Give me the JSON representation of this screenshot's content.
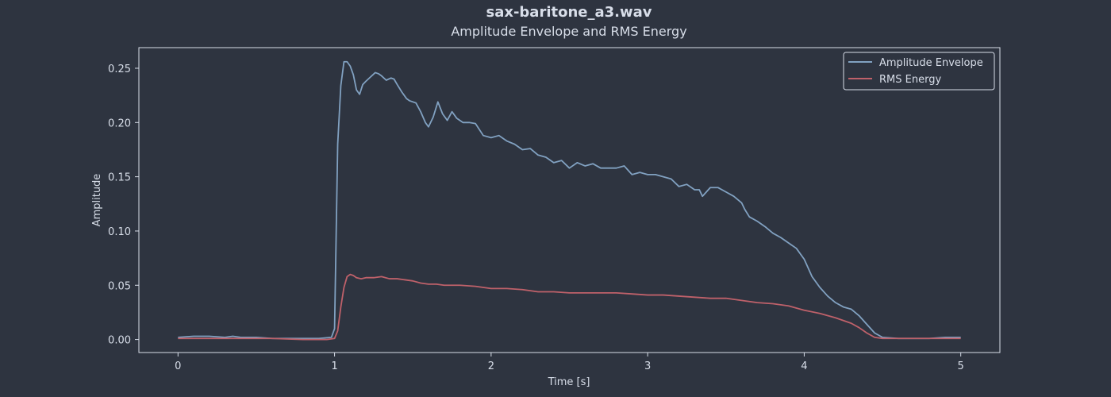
{
  "colors": {
    "background": "#2e3440",
    "axes": "#d8dee9",
    "text": "#d8dee9"
  },
  "chart_data": {
    "type": "line",
    "title": "sax-baritone_a3.wav",
    "subtitle": "Amplitude Envelope and RMS Energy",
    "xlabel": "Time [s]",
    "ylabel": "Amplitude",
    "xlim": [
      -0.25,
      5.25
    ],
    "ylim": [
      -0.012,
      0.269
    ],
    "xticks": [
      0,
      1,
      2,
      3,
      4,
      5
    ],
    "xtick_labels": [
      "0",
      "1",
      "2",
      "3",
      "4",
      "5"
    ],
    "yticks": [
      0.0,
      0.05,
      0.1,
      0.15,
      0.2,
      0.25
    ],
    "ytick_labels": [
      "0.00",
      "0.05",
      "0.10",
      "0.15",
      "0.20",
      "0.25"
    ],
    "grid": false,
    "legend_position": "top-right",
    "series": [
      {
        "name": "Amplitude Envelope",
        "color": "#81a1c1",
        "x": [
          0,
          0.1,
          0.2,
          0.3,
          0.35,
          0.4,
          0.5,
          0.6,
          0.7,
          0.8,
          0.9,
          0.98,
          1.0,
          1.02,
          1.04,
          1.06,
          1.08,
          1.1,
          1.12,
          1.14,
          1.16,
          1.18,
          1.2,
          1.23,
          1.26,
          1.28,
          1.3,
          1.33,
          1.36,
          1.38,
          1.4,
          1.43,
          1.46,
          1.48,
          1.52,
          1.55,
          1.58,
          1.6,
          1.63,
          1.66,
          1.69,
          1.72,
          1.75,
          1.78,
          1.82,
          1.86,
          1.9,
          1.95,
          2.0,
          2.05,
          2.1,
          2.15,
          2.2,
          2.25,
          2.3,
          2.35,
          2.4,
          2.45,
          2.5,
          2.55,
          2.6,
          2.65,
          2.7,
          2.75,
          2.8,
          2.85,
          2.9,
          2.95,
          3.0,
          3.05,
          3.1,
          3.15,
          3.2,
          3.25,
          3.3,
          3.33,
          3.35,
          3.4,
          3.45,
          3.5,
          3.55,
          3.6,
          3.62,
          3.65,
          3.7,
          3.75,
          3.8,
          3.85,
          3.9,
          3.95,
          4.0,
          4.05,
          4.1,
          4.15,
          4.2,
          4.25,
          4.3,
          4.35,
          4.4,
          4.45,
          4.5,
          4.6,
          4.7,
          4.8,
          4.9,
          5.0
        ],
        "values": [
          0.002,
          0.003,
          0.003,
          0.002,
          0.003,
          0.002,
          0.002,
          0.001,
          0.001,
          0.001,
          0.001,
          0.002,
          0.01,
          0.18,
          0.234,
          0.256,
          0.256,
          0.252,
          0.244,
          0.23,
          0.226,
          0.235,
          0.238,
          0.242,
          0.246,
          0.245,
          0.243,
          0.239,
          0.241,
          0.24,
          0.235,
          0.228,
          0.222,
          0.22,
          0.218,
          0.21,
          0.2,
          0.196,
          0.205,
          0.219,
          0.208,
          0.202,
          0.21,
          0.204,
          0.2,
          0.2,
          0.199,
          0.188,
          0.186,
          0.188,
          0.183,
          0.18,
          0.175,
          0.176,
          0.17,
          0.168,
          0.163,
          0.165,
          0.158,
          0.163,
          0.16,
          0.162,
          0.158,
          0.158,
          0.158,
          0.16,
          0.152,
          0.154,
          0.152,
          0.152,
          0.15,
          0.148,
          0.141,
          0.143,
          0.138,
          0.138,
          0.132,
          0.14,
          0.14,
          0.136,
          0.132,
          0.126,
          0.12,
          0.113,
          0.109,
          0.104,
          0.098,
          0.094,
          0.089,
          0.084,
          0.074,
          0.058,
          0.048,
          0.04,
          0.034,
          0.03,
          0.028,
          0.022,
          0.014,
          0.006,
          0.002,
          0.001,
          0.001,
          0.001,
          0.002,
          0.002
        ]
      },
      {
        "name": "RMS Energy",
        "color": "#bf616a",
        "x": [
          0,
          0.2,
          0.4,
          0.6,
          0.8,
          0.95,
          1.0,
          1.02,
          1.04,
          1.06,
          1.08,
          1.1,
          1.12,
          1.14,
          1.17,
          1.2,
          1.25,
          1.3,
          1.35,
          1.4,
          1.45,
          1.5,
          1.55,
          1.6,
          1.65,
          1.7,
          1.8,
          1.9,
          2.0,
          2.1,
          2.2,
          2.3,
          2.4,
          2.5,
          2.6,
          2.7,
          2.8,
          2.9,
          3.0,
          3.1,
          3.2,
          3.3,
          3.4,
          3.5,
          3.6,
          3.7,
          3.8,
          3.9,
          4.0,
          4.1,
          4.2,
          4.3,
          4.35,
          4.4,
          4.45,
          4.5,
          4.6,
          4.8,
          5.0
        ],
        "values": [
          0.001,
          0.001,
          0.001,
          0.001,
          0.0,
          0.0,
          0.001,
          0.008,
          0.03,
          0.048,
          0.058,
          0.06,
          0.059,
          0.057,
          0.056,
          0.057,
          0.057,
          0.058,
          0.056,
          0.056,
          0.055,
          0.054,
          0.052,
          0.051,
          0.051,
          0.05,
          0.05,
          0.049,
          0.047,
          0.047,
          0.046,
          0.044,
          0.044,
          0.043,
          0.043,
          0.043,
          0.043,
          0.042,
          0.041,
          0.041,
          0.04,
          0.039,
          0.038,
          0.038,
          0.036,
          0.034,
          0.033,
          0.031,
          0.027,
          0.024,
          0.02,
          0.015,
          0.011,
          0.006,
          0.002,
          0.001,
          0.001,
          0.001,
          0.001
        ]
      }
    ]
  }
}
